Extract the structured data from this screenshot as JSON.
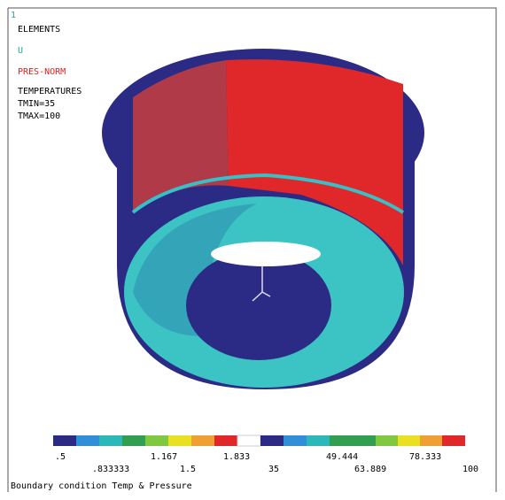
{
  "window_number": "1",
  "legend_text": {
    "elements": "ELEMENTS",
    "u": "U",
    "pres_norm": "PRES-NORM",
    "temperatures": "TEMPERATURES",
    "tmin": "TMIN=35",
    "tmax": "TMAX=100"
  },
  "colorbar_labels": {
    "top": [
      ".5",
      "1.167",
      "1.833",
      "49.444",
      "78.333"
    ],
    "bottom": [
      ".833333",
      "1.5",
      "35",
      "63.889",
      "100"
    ]
  },
  "footer": "Boundary condition Temp & Pressure"
}
